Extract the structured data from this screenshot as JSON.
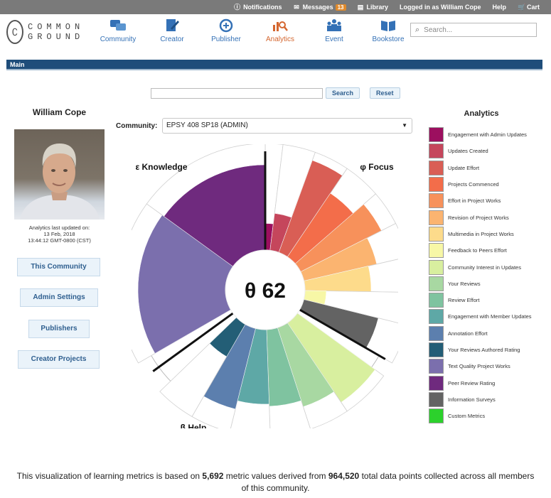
{
  "topbar": {
    "notifications": "Notifications",
    "messages": "Messages",
    "messages_count": "13",
    "library": "Library",
    "logged_in": "Logged in as William Cope",
    "help": "Help",
    "cart": "Cart"
  },
  "logo": {
    "line1": "COMMON",
    "line2": "GROUND"
  },
  "nav": [
    {
      "label": "Community",
      "icon": "community-icon"
    },
    {
      "label": "Creator",
      "icon": "creator-icon"
    },
    {
      "label": "Publisher",
      "icon": "publisher-icon"
    },
    {
      "label": "Analytics",
      "icon": "analytics-icon",
      "active": true
    },
    {
      "label": "Event",
      "icon": "event-icon"
    },
    {
      "label": "Bookstore",
      "icon": "bookstore-icon"
    }
  ],
  "search": {
    "placeholder": "Search..."
  },
  "main_bar": {
    "title": "Main"
  },
  "search_row": {
    "value": "",
    "search_label": "Search",
    "reset_label": "Reset"
  },
  "profile": {
    "name": "William Cope",
    "updated_line1": "Analytics last updated on:",
    "updated_line2": "13 Feb, 2018",
    "updated_line3": "13:44:12 GMT-0800 (CST)"
  },
  "side_buttons": {
    "this_community": "This Community",
    "admin_settings": "Admin Settings",
    "publishers": "Publishers",
    "creator_projects": "Creator Projects"
  },
  "community": {
    "label": "Community:",
    "selected": "EPSY 408 SP18 (ADMIN)"
  },
  "chart_data": {
    "type": "radial-bar",
    "center_label": "θ 62",
    "sections": [
      {
        "label": "ε Knowledge"
      },
      {
        "label": "φ Focus"
      },
      {
        "label": "β Help"
      }
    ],
    "series": [
      {
        "name": "Engagement with Admin Updates",
        "value": 0.25,
        "color": "#9c0f5f",
        "section": "φ Focus"
      },
      {
        "name": "Updates Created",
        "value": 0.35,
        "color": "#c5465c",
        "section": "φ Focus"
      },
      {
        "name": "Update Effort",
        "value": 0.92,
        "color": "#d95e55",
        "section": "φ Focus"
      },
      {
        "name": "Projects Commenced",
        "value": 0.72,
        "color": "#f36d4a",
        "section": "φ Focus"
      },
      {
        "name": "Effort in Project Works",
        "value": 0.85,
        "color": "#f7915b",
        "section": "φ Focus"
      },
      {
        "name": "Revision of Project Works",
        "value": 0.7,
        "color": "#fbb470",
        "section": "φ Focus"
      },
      {
        "name": "Multimedia in Project Works",
        "value": 0.62,
        "color": "#fddb8b",
        "section": "φ Focus"
      },
      {
        "name": "Feedback to Peers Effort",
        "value": 0.2,
        "color": "#f7f7a6",
        "section": "φ Focus"
      },
      {
        "name": "Information Surveys",
        "value": 0.72,
        "color": "#636363",
        "section": "φ Focus"
      },
      {
        "name": "Community Interest in Updates",
        "value": 0.9,
        "color": "#d8ef9f",
        "section": "β Help"
      },
      {
        "name": "Your Reviews",
        "value": 0.78,
        "color": "#a8d8a2",
        "section": "β Help"
      },
      {
        "name": "Review Effort",
        "value": 0.72,
        "color": "#7fc3a0",
        "section": "β Help"
      },
      {
        "name": "Engagement with Member Updates",
        "value": 0.7,
        "color": "#5ea8a6",
        "section": "β Help"
      },
      {
        "name": "Annotation Effort",
        "value": 0.78,
        "color": "#5c7fae",
        "section": "β Help"
      },
      {
        "name": "Your Reviews Authored Rating",
        "value": 0.35,
        "color": "#235e76",
        "section": "β Help"
      },
      {
        "name": "Text Quality Project Works",
        "value": 0.82,
        "color": "#7b6fad",
        "section": "ε Knowledge"
      },
      {
        "name": "Peer Review Rating",
        "value": 0.8,
        "color": "#6f2a7e",
        "section": "ε Knowledge"
      },
      {
        "name": "Custom Metrics",
        "value": 0,
        "color": "#2cd12c",
        "section": ""
      }
    ]
  },
  "legend": {
    "title": "Analytics",
    "items": [
      {
        "label": "Engagement with Admin Updates",
        "color": "#9c0f5f"
      },
      {
        "label": "Updates Created",
        "color": "#c5465c"
      },
      {
        "label": "Update Effort",
        "color": "#d95e55"
      },
      {
        "label": "Projects Commenced",
        "color": "#f36d4a"
      },
      {
        "label": "Effort in Project Works",
        "color": "#f7915b"
      },
      {
        "label": "Revision of Project Works",
        "color": "#fbb470"
      },
      {
        "label": "Multimedia in Project Works",
        "color": "#fddb8b"
      },
      {
        "label": "Feedback to Peers Effort",
        "color": "#f7f7a6"
      },
      {
        "label": "Community Interest in Updates",
        "color": "#d8ef9f"
      },
      {
        "label": "Your Reviews",
        "color": "#a8d8a2"
      },
      {
        "label": "Review Effort",
        "color": "#7fc3a0"
      },
      {
        "label": "Engagement with Member Updates",
        "color": "#5ea8a6"
      },
      {
        "label": "Annotation Effort",
        "color": "#5c7fae"
      },
      {
        "label": "Your Reviews Authored Rating",
        "color": "#235e76"
      },
      {
        "label": "Text Quality Project Works",
        "color": "#7b6fad"
      },
      {
        "label": "Peer Review Rating",
        "color": "#6f2a7e"
      },
      {
        "label": "Information Surveys",
        "color": "#636363"
      },
      {
        "label": "Custom Metrics",
        "color": "#2cd12c"
      }
    ]
  },
  "footer": {
    "prefix": "This visualization of learning metrics is based on ",
    "metric_values": "5,692",
    "middle": " metric values derived from ",
    "data_points": "964,520",
    "suffix": " total data points collected across all members of this community."
  }
}
